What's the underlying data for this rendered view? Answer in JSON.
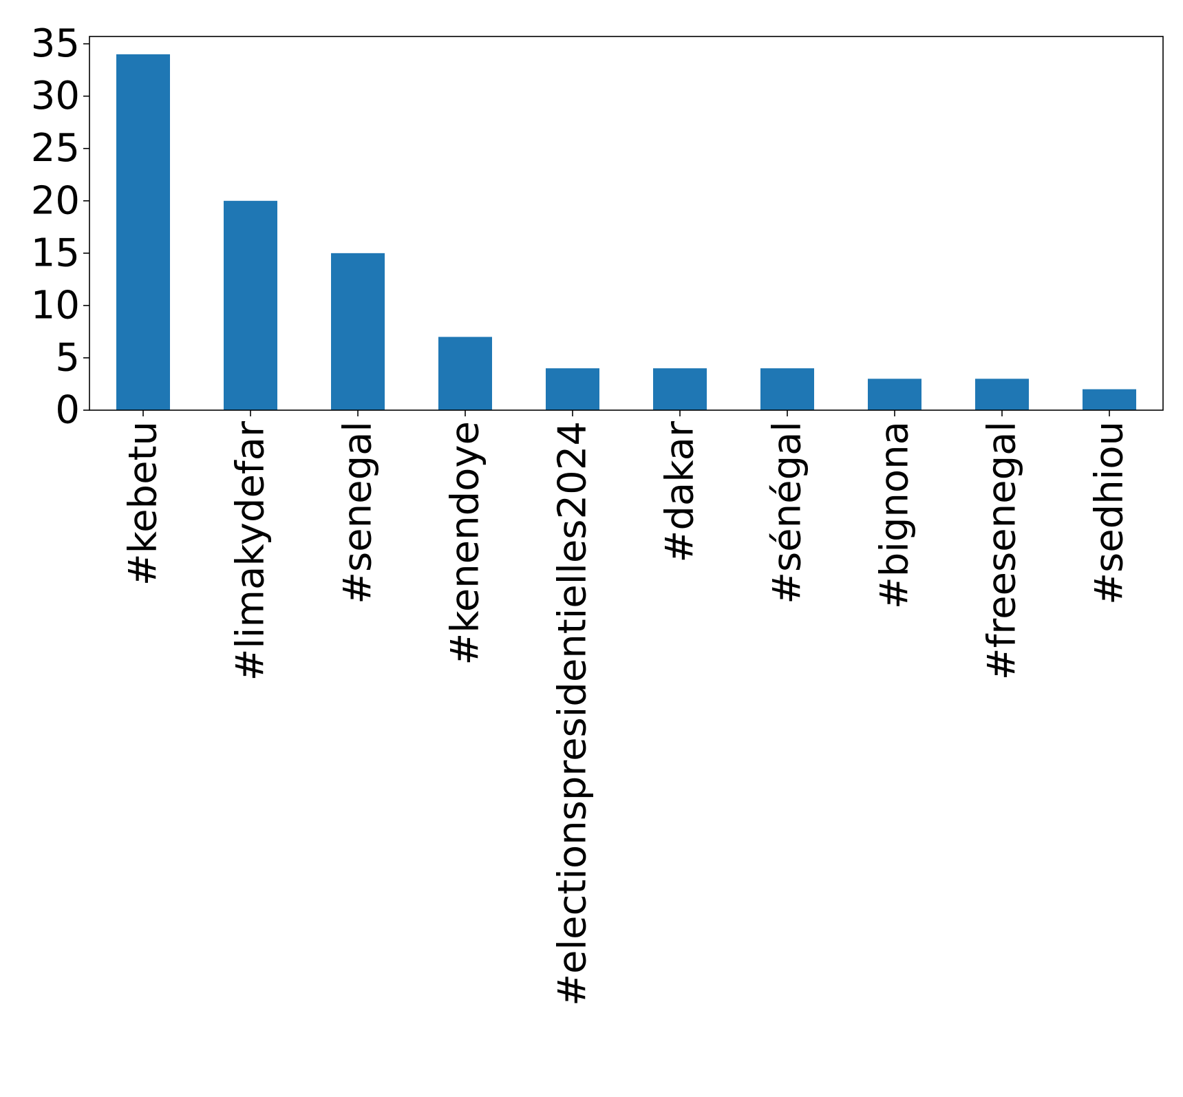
{
  "chart_data": {
    "type": "bar",
    "title": "",
    "xlabel": "",
    "ylabel": "",
    "categories": [
      "#kebetu",
      "#limakydefar",
      "#senegal",
      "#kenendoye",
      "#electionspresidentielles2024",
      "#dakar",
      "#sénégal",
      "#bignona",
      "#freesenegal",
      "#sedhiou"
    ],
    "values": [
      34,
      20,
      15,
      7,
      4,
      4,
      4,
      3,
      3,
      2
    ],
    "ylim": [
      0,
      35.7
    ],
    "yticks": [
      "0",
      "5",
      "10",
      "15",
      "20",
      "25",
      "30",
      "35"
    ],
    "bar_color": "#1f77b4",
    "grid": false,
    "legend": "none"
  }
}
